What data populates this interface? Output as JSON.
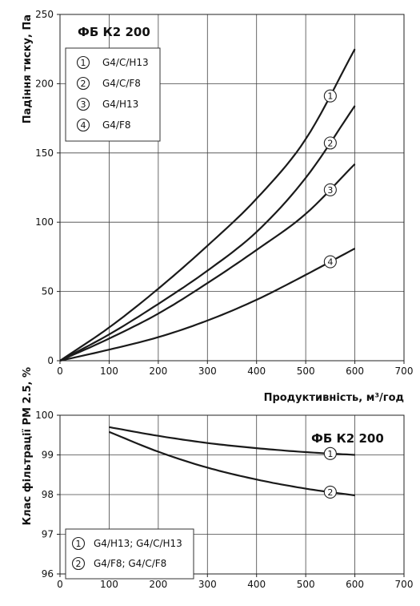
{
  "chart_data": [
    {
      "type": "line",
      "title": "ФБ К2 200",
      "xlabel": "Продуктивність, м³/год",
      "ylabel": "Падіння тиску, Па",
      "xlim": [
        0,
        700
      ],
      "ylim": [
        0,
        250
      ],
      "xticks": [
        0,
        100,
        200,
        300,
        400,
        500,
        600,
        700
      ],
      "yticks": [
        0,
        50,
        100,
        150,
        200,
        250
      ],
      "grid": true,
      "legend_position": "top-left",
      "series": [
        {
          "marker": "1",
          "name": "G4/C/H13",
          "x": [
            0,
            100,
            200,
            300,
            400,
            500,
            600
          ],
          "y": [
            0,
            24,
            52,
            83,
            117,
            160,
            225
          ],
          "label_at": 550
        },
        {
          "marker": "2",
          "name": "G4/C/F8",
          "x": [
            0,
            100,
            200,
            300,
            400,
            500,
            600
          ],
          "y": [
            0,
            19,
            41,
            65,
            93,
            132,
            184
          ],
          "label_at": 550
        },
        {
          "marker": "3",
          "name": "G4/H13",
          "x": [
            0,
            100,
            200,
            300,
            400,
            500,
            600
          ],
          "y": [
            0,
            16,
            34,
            56,
            80,
            106,
            142
          ],
          "label_at": 550
        },
        {
          "marker": "4",
          "name": "G4/F8",
          "x": [
            0,
            100,
            200,
            300,
            400,
            500,
            600
          ],
          "y": [
            0,
            8,
            17,
            29,
            44,
            62,
            81
          ],
          "label_at": 550
        }
      ]
    },
    {
      "type": "line",
      "title": "ФБ К2 200",
      "xlabel": "",
      "ylabel": "Клас фільтрації РМ 2.5, %",
      "xlim": [
        0,
        700
      ],
      "ylim": [
        96,
        100
      ],
      "xticks": [
        0,
        100,
        200,
        300,
        400,
        500,
        600,
        700
      ],
      "yticks": [
        96,
        97,
        98,
        99,
        100
      ],
      "grid": true,
      "legend_position": "bottom-left",
      "series": [
        {
          "marker": "1",
          "name": "G4/H13; G4/C/H13",
          "x": [
            100,
            200,
            300,
            400,
            500,
            600
          ],
          "y": [
            99.7,
            99.48,
            99.3,
            99.17,
            99.07,
            99.0
          ],
          "label_at": 550
        },
        {
          "marker": "2",
          "name": "G4/F8; G4/C/F8",
          "x": [
            100,
            200,
            300,
            400,
            500,
            600
          ],
          "y": [
            99.58,
            99.08,
            98.68,
            98.38,
            98.15,
            97.98
          ],
          "label_at": 550
        }
      ]
    }
  ]
}
